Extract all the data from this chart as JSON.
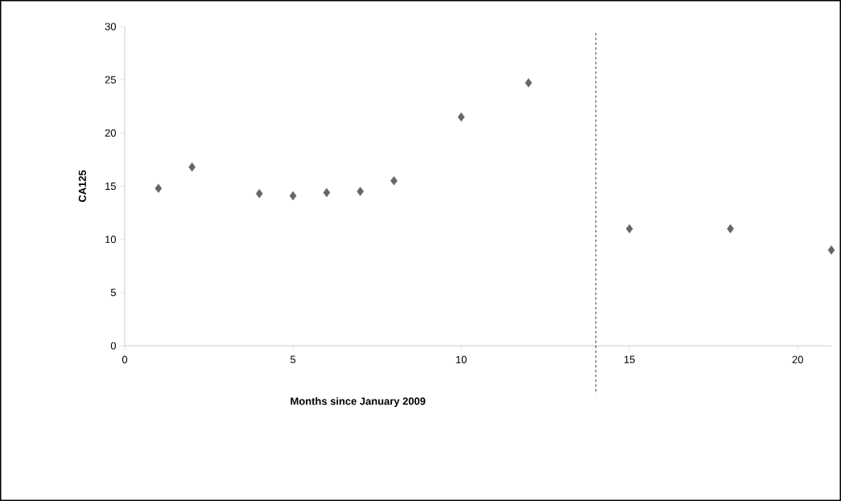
{
  "chart_data": {
    "type": "scatter",
    "xlabel": "Months since January 2009",
    "ylabel": "CA125",
    "x": [
      1,
      2,
      4,
      5,
      6,
      7,
      8,
      10,
      12,
      15,
      18,
      21
    ],
    "values": [
      14.8,
      16.8,
      14.3,
      14.1,
      14.4,
      14.5,
      15.5,
      21.5,
      24.7,
      11.0,
      11.0,
      9.0
    ],
    "color": "#666666",
    "marker": "diamond",
    "xlim": [
      0,
      21
    ],
    "xticks": [
      0,
      5,
      10,
      15,
      20
    ],
    "ylim": [
      0,
      30
    ],
    "yticks": [
      0,
      5,
      10,
      15,
      20,
      25,
      30
    ],
    "ref_lines": [
      {
        "axis": "x",
        "value": 14,
        "line_style": "dashed",
        "color": "#000000"
      }
    ],
    "grid": false
  }
}
